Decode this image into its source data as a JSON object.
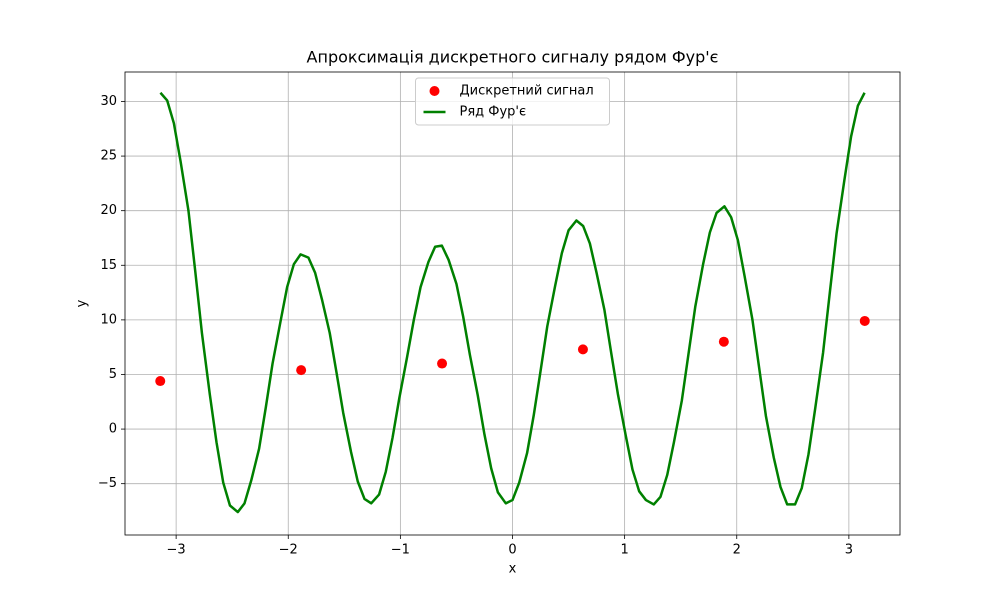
{
  "chart_data": {
    "type": "line",
    "title": "Апроксимація дискретного сигналу рядом Фур'є",
    "x_label": "x",
    "y_label": "y",
    "xlim": [
      -3.456,
      3.456
    ],
    "ylim": [
      -9.7,
      32.7
    ],
    "xticks": [
      {
        "value": -3,
        "label": "−3"
      },
      {
        "value": -2,
        "label": "−2"
      },
      {
        "value": -1,
        "label": "−1"
      },
      0,
      1,
      2,
      3
    ],
    "yticks": [
      {
        "value": -5,
        "label": "−5"
      },
      0,
      5,
      10,
      15,
      20,
      25,
      30
    ],
    "grid": true,
    "legend": "upper center",
    "series": [
      {
        "name": "Дискретний сигнал",
        "style": "scatter",
        "color": "#ff0000",
        "x": [
          -3.1416,
          -1.885,
          -0.6283,
          0.6283,
          1.885,
          3.1416
        ],
        "values": [
          4.4,
          5.4,
          6.0,
          7.3,
          8.0,
          9.9
        ]
      },
      {
        "name": "Ряд Фур'є",
        "style": "line",
        "color": "#008000",
        "x": [
          -3.14,
          -3.08,
          -3.02,
          -2.96,
          -2.89,
          -2.83,
          -2.77,
          -2.7,
          -2.64,
          -2.58,
          -2.52,
          -2.45,
          -2.39,
          -2.33,
          -2.26,
          -2.2,
          -2.14,
          -2.07,
          -2.01,
          -1.95,
          -1.89,
          -1.82,
          -1.76,
          -1.7,
          -1.63,
          -1.57,
          -1.51,
          -1.44,
          -1.38,
          -1.32,
          -1.26,
          -1.19,
          -1.13,
          -1.07,
          -1.01,
          -0.94,
          -0.88,
          -0.82,
          -0.75,
          -0.69,
          -0.63,
          -0.57,
          -0.5,
          -0.44,
          -0.38,
          -0.31,
          -0.25,
          -0.19,
          -0.13,
          -0.06,
          0,
          0.06,
          0.13,
          0.19,
          0.25,
          0.31,
          0.38,
          0.44,
          0.5,
          0.57,
          0.63,
          0.69,
          0.75,
          0.82,
          0.88,
          0.94,
          1.01,
          1.07,
          1.13,
          1.19,
          1.26,
          1.32,
          1.38,
          1.44,
          1.51,
          1.57,
          1.63,
          1.7,
          1.76,
          1.82,
          1.89,
          1.95,
          2.01,
          2.07,
          2.14,
          2.2,
          2.26,
          2.33,
          2.39,
          2.45,
          2.52,
          2.58,
          2.64,
          2.7,
          2.77,
          2.83,
          2.89,
          2.96,
          3.02,
          3.08,
          3.14
        ],
        "values": [
          30.8,
          30.1,
          28,
          24.5,
          20,
          14.5,
          8.8,
          3.2,
          -1.2,
          -4.9,
          -7.0,
          -7.6,
          -6.8,
          -4.7,
          -1.8,
          2,
          6,
          9.8,
          13,
          15.1,
          16.0,
          15.7,
          14.3,
          11.9,
          8.8,
          5.2,
          1.5,
          -2.1,
          -4.8,
          -6.4,
          -6.8,
          -6,
          -3.9,
          -0.8,
          2.8,
          6.6,
          10,
          13,
          15.3,
          16.7,
          16.8,
          15.5,
          13.3,
          10.3,
          6.8,
          3.1,
          -0.5,
          -3.6,
          -5.8,
          -6.8,
          -6.5,
          -4.9,
          -2.2,
          1.3,
          5.3,
          9.4,
          13.1,
          16.1,
          18.2,
          19.1,
          18.6,
          17,
          14.3,
          10.9,
          7,
          3.2,
          -0.6,
          -3.7,
          -5.7,
          -6.5,
          -6.9,
          -6.2,
          -4.2,
          -1.2,
          2.6,
          6.9,
          11.2,
          15.1,
          18,
          19.8,
          20.4,
          19.4,
          17.3,
          14,
          10,
          5.6,
          1.2,
          -2.6,
          -5.3,
          -6.9,
          -6.9,
          -5.4,
          -2.3,
          1.9,
          7,
          12.5,
          17.9,
          22.8,
          26.8,
          29.6,
          30.8
        ]
      }
    ]
  }
}
